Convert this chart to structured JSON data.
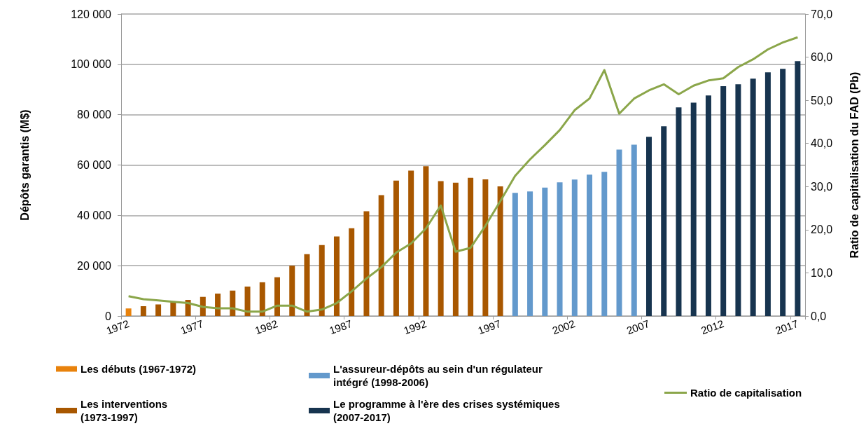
{
  "chart_data": {
    "type": "bar",
    "ylabel": "Dépôts garantis (M$)",
    "y2label": "Ratio de capitalisation du FAD (Pb)",
    "categories": [
      "1972",
      null,
      null,
      null,
      null,
      "1977",
      null,
      null,
      null,
      null,
      "1982",
      null,
      null,
      null,
      null,
      "1987",
      null,
      null,
      null,
      null,
      "1992",
      null,
      null,
      null,
      null,
      "1997",
      null,
      null,
      null,
      null,
      "2002",
      null,
      null,
      null,
      null,
      "2007",
      null,
      null,
      null,
      null,
      "2012",
      null,
      null,
      null,
      null,
      "2017"
    ],
    "series": [
      {
        "name": "Les débuts (1967-1972)",
        "color": "#e8820c",
        "values": [
          3000,
          null,
          null,
          null,
          null,
          null,
          null,
          null,
          null,
          null,
          null,
          null,
          null,
          null,
          null,
          null,
          null,
          null,
          null,
          null,
          null,
          null,
          null,
          null,
          null,
          null,
          null,
          null,
          null,
          null,
          null,
          null,
          null,
          null,
          null,
          null,
          null,
          null,
          null,
          null,
          null,
          null,
          null,
          null,
          null,
          null
        ]
      },
      {
        "name": "Les interventions (1973-1997)",
        "color": "#a85700",
        "values": [
          null,
          3900,
          4600,
          5800,
          6400,
          7600,
          8900,
          10100,
          11700,
          13400,
          15400,
          20000,
          24600,
          28200,
          31600,
          34900,
          41600,
          48000,
          53800,
          57800,
          59500,
          53600,
          53000,
          54900,
          54300,
          51500,
          null,
          null,
          null,
          null,
          null,
          null,
          null,
          null,
          null,
          null,
          null,
          null,
          null,
          null,
          null,
          null,
          null,
          null,
          null,
          null
        ]
      },
      {
        "name": "L'assureur-dépôts au sein d'un régulateur intégré (1998-2006)",
        "color": "#6399cc",
        "values": [
          null,
          null,
          null,
          null,
          null,
          null,
          null,
          null,
          null,
          null,
          null,
          null,
          null,
          null,
          null,
          null,
          null,
          null,
          null,
          null,
          null,
          null,
          null,
          null,
          null,
          null,
          48900,
          49500,
          51000,
          53100,
          54200,
          56200,
          57300,
          66100,
          68100,
          null,
          null,
          null,
          null,
          null,
          null,
          null,
          null,
          null,
          null,
          null
        ]
      },
      {
        "name": "Le programme à l'ère des crises systémiques (2007-2017)",
        "color": "#17344f",
        "values": [
          null,
          null,
          null,
          null,
          null,
          null,
          null,
          null,
          null,
          null,
          null,
          null,
          null,
          null,
          null,
          null,
          null,
          null,
          null,
          null,
          null,
          null,
          null,
          null,
          null,
          null,
          null,
          null,
          null,
          null,
          null,
          null,
          null,
          null,
          null,
          71200,
          75400,
          82900,
          84800,
          87600,
          91300,
          92100,
          94300,
          96800,
          98200,
          101300
        ]
      },
      {
        "name": "Ratio de capitalisation",
        "type": "line",
        "axis": "y2",
        "color": "#8ba64a",
        "values": [
          4.6,
          3.9,
          3.6,
          3.3,
          3.0,
          2.1,
          1.8,
          1.8,
          1.0,
          1.0,
          2.4,
          2.4,
          1.0,
          1.5,
          3.0,
          5.7,
          8.7,
          11.3,
          14.7,
          16.8,
          20.3,
          25.6,
          14.9,
          15.8,
          20.9,
          26.6,
          32.5,
          36.3,
          39.6,
          43.1,
          47.7,
          50.4,
          57.0,
          46.9,
          50.4,
          52.3,
          53.7,
          51.4,
          53.4,
          54.6,
          55.1,
          57.7,
          59.5,
          61.8,
          63.4,
          64.6
        ]
      }
    ],
    "ylim": [
      0,
      120000
    ],
    "yticks": [
      0,
      {
        "value": 20000,
        "label": "20 000"
      },
      {
        "value": 40000,
        "label": "40 000"
      },
      {
        "value": 60000,
        "label": "60 000"
      },
      {
        "value": 80000,
        "label": "80 000"
      },
      {
        "value": 100000,
        "label": "100 000"
      },
      {
        "value": 120000,
        "label": "120 000"
      }
    ],
    "y2lim": [
      0,
      70
    ],
    "y2ticks": [
      {
        "value": 0,
        "label": "0,0"
      },
      {
        "value": 10,
        "label": "10,0"
      },
      {
        "value": 20,
        "label": "20,0"
      },
      {
        "value": 30,
        "label": "30,0"
      },
      {
        "value": 40,
        "label": "40,0"
      },
      {
        "value": 50,
        "label": "50,0"
      },
      {
        "value": 60,
        "label": "60,0"
      },
      {
        "value": 70,
        "label": "70,0"
      }
    ],
    "grid": "y",
    "legend": "bottom",
    "marker": "none"
  }
}
